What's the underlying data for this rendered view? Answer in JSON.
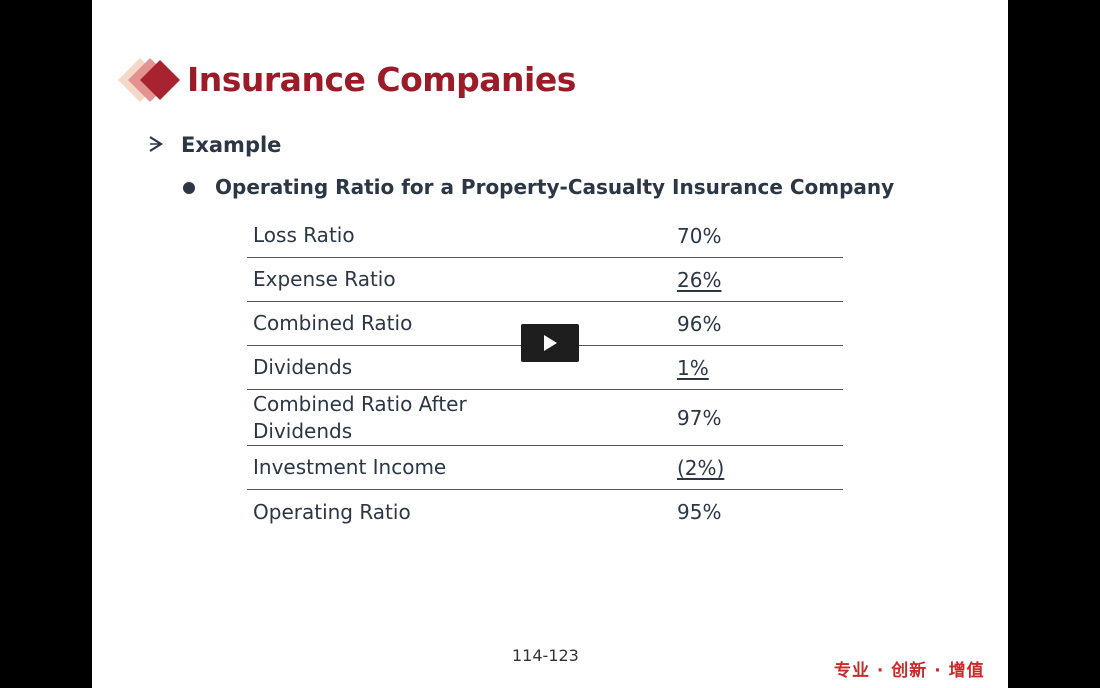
{
  "slide": {
    "title": "Insurance Companies",
    "level1": "Example",
    "level2": "Operating Ratio for a Property-Casualty Insurance Company",
    "rows": [
      {
        "label": "Loss Ratio",
        "value": "70%"
      },
      {
        "label": "Expense Ratio",
        "value": "26%"
      },
      {
        "label": "Combined Ratio",
        "value": "96%"
      },
      {
        "label": "Dividends",
        "value": "1%"
      },
      {
        "label": "Combined Ratio After Dividends",
        "value": "97%"
      },
      {
        "label": "Investment Income",
        "value": "(2%)"
      },
      {
        "label": "Operating Ratio",
        "value": "95%"
      }
    ],
    "page_number": "114-123",
    "slogan": "专业 · 创新 · 增值"
  },
  "colors": {
    "title": "#9b1c28",
    "text": "#2c3645",
    "slogan": "#cc2a2a",
    "logo_dark": "#a82330",
    "logo_mid": "#e08a8a",
    "logo_light": "#f5d9c8"
  },
  "player": {
    "play_icon": "play-icon"
  }
}
